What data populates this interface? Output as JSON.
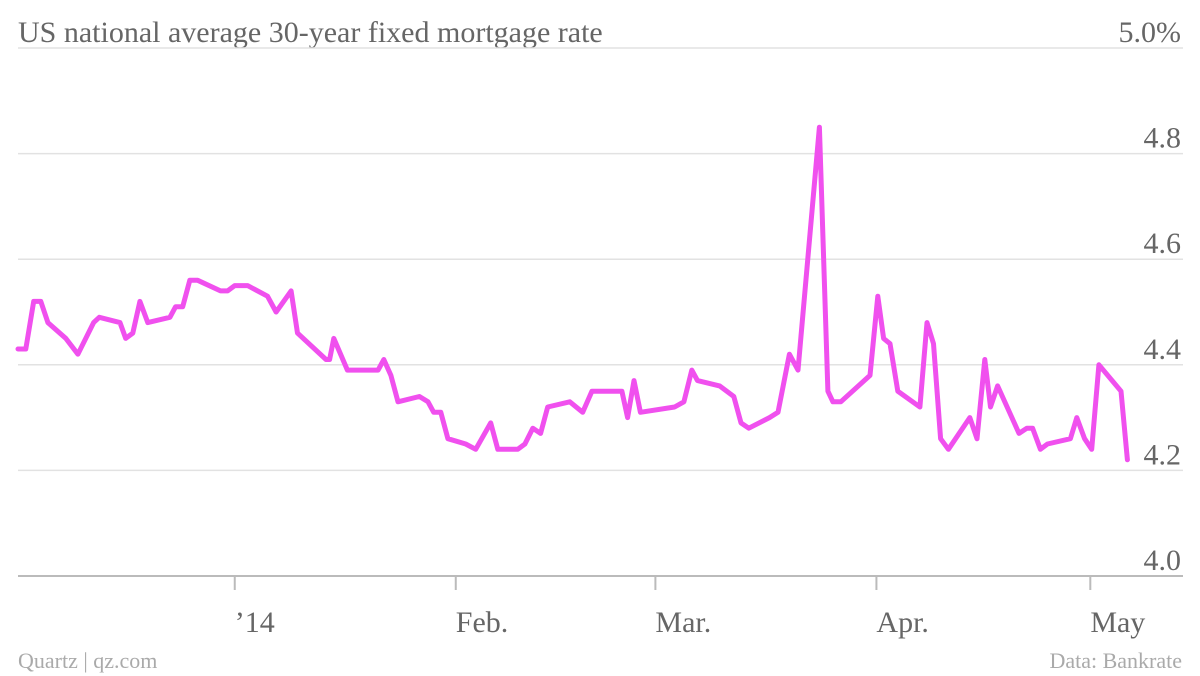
{
  "chart_data": {
    "type": "line",
    "title": "US national average 30-year fixed mortgage rate",
    "credit": "Quartz | qz.com",
    "source": "Data: Bankrate",
    "x": [
      -30.4,
      -29.3,
      -28.2,
      -27.2,
      -26.2,
      -23.7,
      -22.0,
      -19.8,
      -19.0,
      -16.1,
      -15.3,
      -14.3,
      -13.3,
      -12.2,
      -9.1,
      -8.3,
      -7.3,
      -6.3,
      -5.2,
      -2.0,
      -1.0,
      0,
      1.8,
      4.6,
      5.8,
      7.9,
      8.8,
      12.8,
      13.3,
      13.9,
      15.8,
      20.1,
      20.9,
      21.9,
      22.9,
      25.9,
      27.1,
      27.9,
      28.9,
      29.9,
      32.4,
      33.8,
      35.9,
      36.9,
      39.7,
      40.7,
      41.8,
      42.9,
      43.9,
      47.0,
      48.8,
      50.1,
      54.3,
      55.1,
      56.0,
      56.9,
      61.7,
      63.0,
      64.1,
      64.9,
      68.0,
      70.0,
      71.0,
      72.1,
      75.0,
      76.2,
      77.8,
      79.0,
      82.0,
      83.2,
      83.9,
      85.0,
      89.1,
      90.2,
      91.0,
      91.9,
      93.0,
      96.1,
      97.1,
      98.0,
      99.0,
      100.1,
      103.1,
      104.1,
      105.2,
      106.0,
      107.0,
      110.0,
      111.1,
      111.9,
      113.0,
      114.0,
      117.2,
      118.1,
      119.2,
      120.2,
      121.2,
      124.3,
      125.2
    ],
    "series": [
      {
        "name": "30-year fixed",
        "color": "#f050ee",
        "values": [
          4.43,
          4.43,
          4.52,
          4.52,
          4.48,
          4.45,
          4.42,
          4.48,
          4.49,
          4.48,
          4.45,
          4.46,
          4.52,
          4.48,
          4.49,
          4.51,
          4.51,
          4.56,
          4.56,
          4.54,
          4.54,
          4.55,
          4.55,
          4.53,
          4.5,
          4.54,
          4.46,
          4.41,
          4.41,
          4.45,
          4.39,
          4.39,
          4.41,
          4.38,
          4.33,
          4.34,
          4.33,
          4.31,
          4.31,
          4.26,
          4.25,
          4.24,
          4.29,
          4.24,
          4.24,
          4.25,
          4.28,
          4.27,
          4.32,
          4.33,
          4.31,
          4.35,
          4.35,
          4.3,
          4.37,
          4.31,
          4.32,
          4.33,
          4.39,
          4.37,
          4.36,
          4.34,
          4.29,
          4.28,
          4.3,
          4.31,
          4.42,
          4.39,
          4.85,
          4.35,
          4.33,
          4.33,
          4.38,
          4.53,
          4.45,
          4.44,
          4.35,
          4.32,
          4.48,
          4.44,
          4.26,
          4.24,
          4.3,
          4.26,
          4.41,
          4.32,
          4.36,
          4.27,
          4.28,
          4.28,
          4.24,
          4.25,
          4.26,
          4.3,
          4.26,
          4.24,
          4.4,
          4.35,
          4.22
        ]
      }
    ],
    "xlim": [
      -30.4,
      133
    ],
    "xticks": [
      {
        "value": 0,
        "label": "’14"
      },
      {
        "value": 31,
        "label": "Feb."
      },
      {
        "value": 59,
        "label": "Mar."
      },
      {
        "value": 90,
        "label": "Apr."
      },
      {
        "value": 120,
        "label": "May"
      }
    ],
    "ylim": [
      4,
      5
    ],
    "yticks": [
      {
        "value": 4,
        "label": "4.0"
      },
      4.2,
      4.4,
      4.6,
      4.8,
      {
        "value": 5,
        "label": "5.0%"
      }
    ],
    "grid": true
  }
}
